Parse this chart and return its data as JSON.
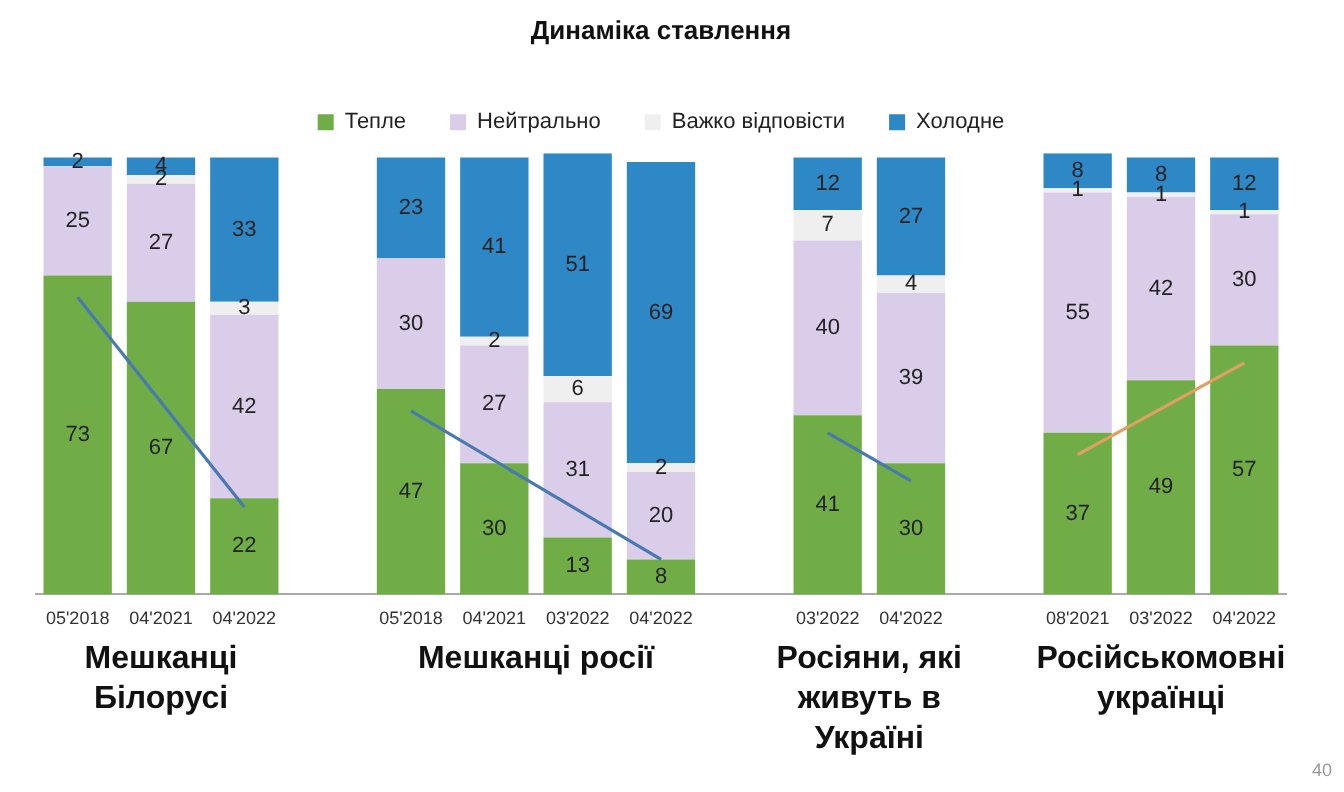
{
  "chart_data": {
    "type": "bar",
    "title": "Динаміка ставлення",
    "stacked": true,
    "legend": "top",
    "tick_labels": "x",
    "ylim": [
      0,
      101
    ],
    "categories": [
      "05'2018",
      "04'2021",
      "04'2022",
      null,
      "05'2018",
      "04'2021",
      "03'2022",
      "04'2022",
      null,
      "03'2022",
      "04'2022",
      null,
      "08'2021",
      "03'2022",
      "04'2022"
    ],
    "series": [
      {
        "name": "Тепле",
        "color": "#70ad47",
        "values": [
          73,
          67,
          22,
          null,
          47,
          30,
          13,
          8,
          null,
          41,
          30,
          null,
          37,
          49,
          57
        ],
        "value_labels": [
          "73",
          "67",
          "22",
          null,
          "47",
          "30",
          "13",
          "8",
          null,
          "41",
          "30",
          null,
          "37",
          "49",
          "57"
        ]
      },
      {
        "name": "Нейтрально",
        "color": "#dacdea",
        "values": [
          25,
          27,
          42,
          null,
          30,
          27,
          31,
          20,
          null,
          40,
          39,
          null,
          55,
          42,
          30
        ],
        "value_labels": [
          "25",
          "27",
          "42",
          null,
          "30",
          "27",
          "31",
          "20",
          null,
          "40",
          "39",
          null,
          "55",
          "42",
          "30"
        ]
      },
      {
        "name": "Важко відповісти",
        "color": "#efefef",
        "values": [
          null,
          2,
          3,
          null,
          null,
          2,
          6,
          2,
          null,
          7,
          4,
          null,
          1,
          1,
          1
        ],
        "value_labels": [
          null,
          "2",
          "3",
          null,
          null,
          "2",
          "6",
          "2",
          null,
          "7",
          "4",
          null,
          "1",
          "1",
          "1"
        ]
      },
      {
        "name": "Холодне",
        "color": "#2f88c6",
        "values": [
          2,
          4,
          33,
          null,
          23,
          41,
          51,
          69,
          null,
          12,
          27,
          null,
          8,
          8,
          12
        ],
        "value_labels": [
          "2",
          "4",
          "33",
          null,
          "23",
          "41",
          "51",
          "69",
          null,
          "12",
          "27",
          null,
          "8",
          "8",
          "12"
        ]
      },
      {
        "type": "line",
        "color": "#4a78b0",
        "values": [
          68,
          null,
          20,
          null,
          null,
          null,
          null,
          null,
          null,
          null,
          null,
          null,
          null,
          null,
          null
        ]
      },
      {
        "type": "line",
        "color": "#4a78b0",
        "values": [
          null,
          null,
          null,
          null,
          42,
          null,
          null,
          8,
          null,
          null,
          null,
          null,
          null,
          null,
          null
        ]
      },
      {
        "type": "line",
        "color": "#4a78b0",
        "values": [
          null,
          null,
          null,
          null,
          null,
          null,
          null,
          null,
          null,
          37,
          26,
          null,
          null,
          null,
          null
        ]
      },
      {
        "type": "line",
        "color": "#e0a060",
        "values": [
          null,
          null,
          null,
          null,
          null,
          null,
          null,
          null,
          null,
          null,
          null,
          null,
          32,
          null,
          53
        ]
      }
    ],
    "annotations": [
      "Мешканці Білорусі",
      "Мешканці росії",
      "Росіяни, які живуть в Україні",
      "Російськомовні українці",
      "40"
    ]
  }
}
